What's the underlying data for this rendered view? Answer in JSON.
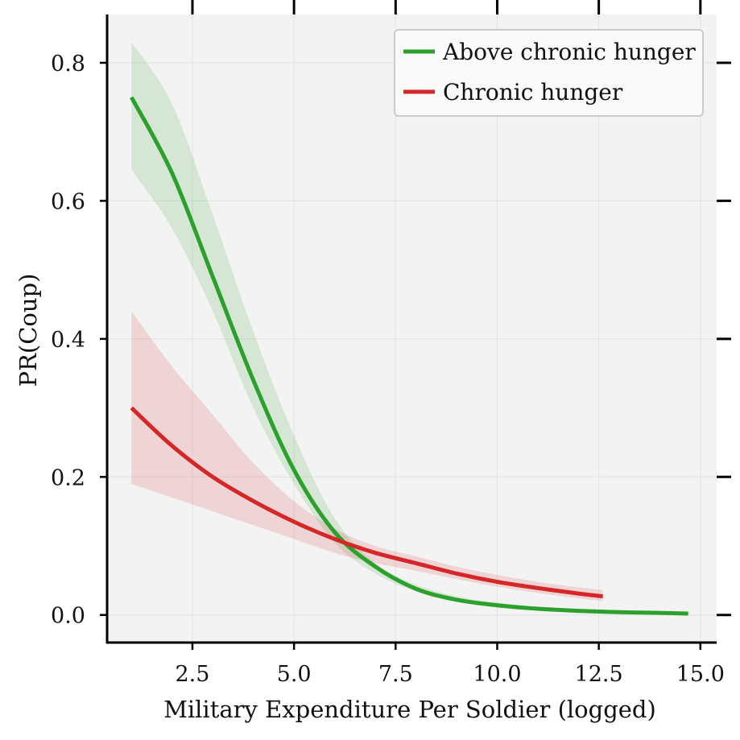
{
  "chart_data": {
    "type": "line",
    "title": "",
    "xlabel": "Military Expenditure Per Soldier (logged)",
    "ylabel": "PR(Coup)",
    "xlim": [
      0.4,
      15.4
    ],
    "ylim": [
      -0.04,
      0.87
    ],
    "xticks": [
      2.5,
      5.0,
      7.5,
      10.0,
      12.5,
      15.0
    ],
    "xtick_labels": [
      "2.5",
      "5.0",
      "7.5",
      "10.0",
      "12.5",
      "15.0"
    ],
    "yticks": [
      0.0,
      0.2,
      0.4,
      0.6,
      0.8
    ],
    "ytick_labels": [
      "0.0",
      "0.2",
      "0.4",
      "0.6",
      "0.8"
    ],
    "grid": true,
    "legend_position": "top-right",
    "series": [
      {
        "name": "Above chronic hunger",
        "color": "#2ca02c",
        "x": [
          1.0,
          2.0,
          3.0,
          4.0,
          5.0,
          6.0,
          7.0,
          8.0,
          9.0,
          10.0,
          11.0,
          12.0,
          13.0,
          14.0,
          14.7
        ],
        "y": [
          0.75,
          0.64,
          0.49,
          0.34,
          0.21,
          0.12,
          0.07,
          0.038,
          0.022,
          0.014,
          0.009,
          0.006,
          0.004,
          0.003,
          0.002
        ],
        "lower": [
          0.645,
          0.56,
          0.44,
          0.3,
          0.19,
          0.105,
          0.06,
          0.034,
          0.019,
          0.011,
          0.007,
          0.004,
          0.003,
          0.002,
          0.001
        ],
        "upper": [
          0.83,
          0.74,
          0.58,
          0.41,
          0.26,
          0.14,
          0.075,
          0.044,
          0.027,
          0.018,
          0.012,
          0.008,
          0.005,
          0.004,
          0.003
        ]
      },
      {
        "name": "Chronic hunger",
        "color": "#d62728",
        "x": [
          1.0,
          2.0,
          3.0,
          4.0,
          5.0,
          6.0,
          7.0,
          8.0,
          9.0,
          10.0,
          11.0,
          12.0,
          12.6
        ],
        "y": [
          0.3,
          0.245,
          0.2,
          0.165,
          0.135,
          0.11,
          0.09,
          0.075,
          0.06,
          0.048,
          0.039,
          0.031,
          0.027
        ],
        "lower": [
          0.19,
          0.17,
          0.15,
          0.13,
          0.11,
          0.09,
          0.075,
          0.064,
          0.052,
          0.041,
          0.032,
          0.024,
          0.02
        ],
        "upper": [
          0.44,
          0.36,
          0.29,
          0.22,
          0.165,
          0.125,
          0.1,
          0.085,
          0.07,
          0.058,
          0.048,
          0.04,
          0.036
        ]
      }
    ]
  }
}
